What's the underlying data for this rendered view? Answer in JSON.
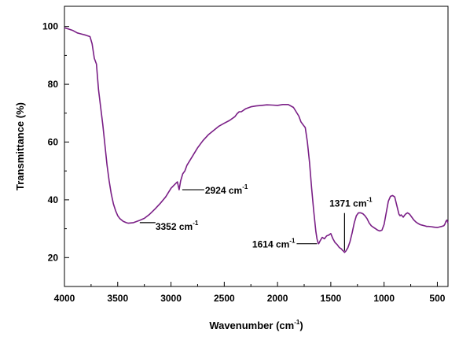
{
  "chart_data": {
    "type": "line",
    "xlabel": "Wavenumber (cm",
    "xlabel_sup": "-1",
    "xlabel_end": ")",
    "ylabel": "Transmittance (%)",
    "xlim": [
      4000,
      400
    ],
    "ylim": [
      10,
      107
    ],
    "x_reversed": true,
    "x_ticks": [
      4000,
      3500,
      3000,
      2500,
      2000,
      1500,
      1000,
      500
    ],
    "y_ticks": [
      20,
      40,
      60,
      80,
      100
    ],
    "line_color": "#7a1f86",
    "series": [
      {
        "x": [
          4000,
          3950,
          3920,
          3880,
          3850,
          3800,
          3760,
          3740,
          3720,
          3700,
          3680,
          3660,
          3640,
          3620,
          3600,
          3580,
          3560,
          3540,
          3520,
          3500,
          3480,
          3450,
          3420,
          3400,
          3380,
          3352,
          3300,
          3250,
          3200,
          3150,
          3100,
          3050,
          3000,
          2960,
          2940,
          2924,
          2910,
          2890,
          2870,
          2850,
          2800,
          2750,
          2700,
          2650,
          2600,
          2550,
          2500,
          2450,
          2400,
          2380,
          2360,
          2340,
          2300,
          2250,
          2200,
          2150,
          2100,
          2050,
          2000,
          1950,
          1900,
          1850,
          1800,
          1780,
          1760,
          1740,
          1720,
          1700,
          1680,
          1660,
          1640,
          1630,
          1620,
          1614,
          1600,
          1580,
          1560,
          1540,
          1520,
          1500,
          1480,
          1460,
          1440,
          1420,
          1400,
          1390,
          1380,
          1371,
          1360,
          1340,
          1320,
          1300,
          1280,
          1260,
          1240,
          1220,
          1200,
          1180,
          1160,
          1140,
          1120,
          1100,
          1080,
          1060,
          1040,
          1020,
          1000,
          980,
          960,
          940,
          920,
          900,
          880,
          860,
          850,
          840,
          820,
          800,
          780,
          760,
          740,
          720,
          700,
          680,
          660,
          640,
          620,
          600,
          580,
          560,
          540,
          520,
          500,
          480,
          460,
          440,
          430,
          420,
          410,
          400
        ],
        "y": [
          99.6,
          99,
          98.6,
          97.8,
          97.5,
          97,
          96.5,
          94,
          89,
          87,
          78,
          72,
          66,
          59,
          52,
          46.5,
          42,
          38.5,
          36.2,
          34.5,
          33.5,
          32.6,
          32.1,
          31.9,
          32,
          32.1,
          32.8,
          33.6,
          35,
          36.8,
          38.8,
          41,
          44,
          45.5,
          46.2,
          43.5,
          46.5,
          49,
          50,
          52,
          55,
          58,
          60.5,
          62.5,
          64,
          65.5,
          66.5,
          67.5,
          68.8,
          69.8,
          70.5,
          70.5,
          71.5,
          72.2,
          72.5,
          72.7,
          72.9,
          72.8,
          72.7,
          73,
          73,
          72,
          69,
          67,
          66,
          65,
          60,
          53,
          44,
          36,
          29,
          26.5,
          25.2,
          24.8,
          25.8,
          27,
          26.5,
          27.5,
          27.8,
          28.3,
          26.5,
          25.2,
          24.5,
          23.5,
          23,
          22.5,
          22.2,
          21.8,
          22.2,
          23.4,
          25.5,
          28.5,
          32,
          34.5,
          35.5,
          35.5,
          35.2,
          34.5,
          33.5,
          32,
          31,
          30.5,
          30,
          29.5,
          29.2,
          29.5,
          31.5,
          35.5,
          39.5,
          41.2,
          41.5,
          41,
          38,
          35,
          34.5,
          34.8,
          34,
          35,
          35.5,
          35,
          34,
          33,
          32.3,
          31.8,
          31.4,
          31.2,
          31,
          30.8,
          30.8,
          30.7,
          30.6,
          30.5,
          30.4,
          30.6,
          30.8,
          31,
          31.5,
          32.5,
          33,
          32
        ]
      }
    ],
    "annotations": [
      {
        "x": 3352,
        "y": 32.1,
        "label": "3352 cm",
        "sup": "-1"
      },
      {
        "x": 2924,
        "y": 43.5,
        "label": "2924 cm",
        "sup": "-1"
      },
      {
        "x": 1614,
        "y": 24.8,
        "label": "1614 cm",
        "sup": "-1"
      },
      {
        "x": 1371,
        "y": 21.8,
        "label": "1371 cm",
        "sup": "-1"
      }
    ]
  }
}
